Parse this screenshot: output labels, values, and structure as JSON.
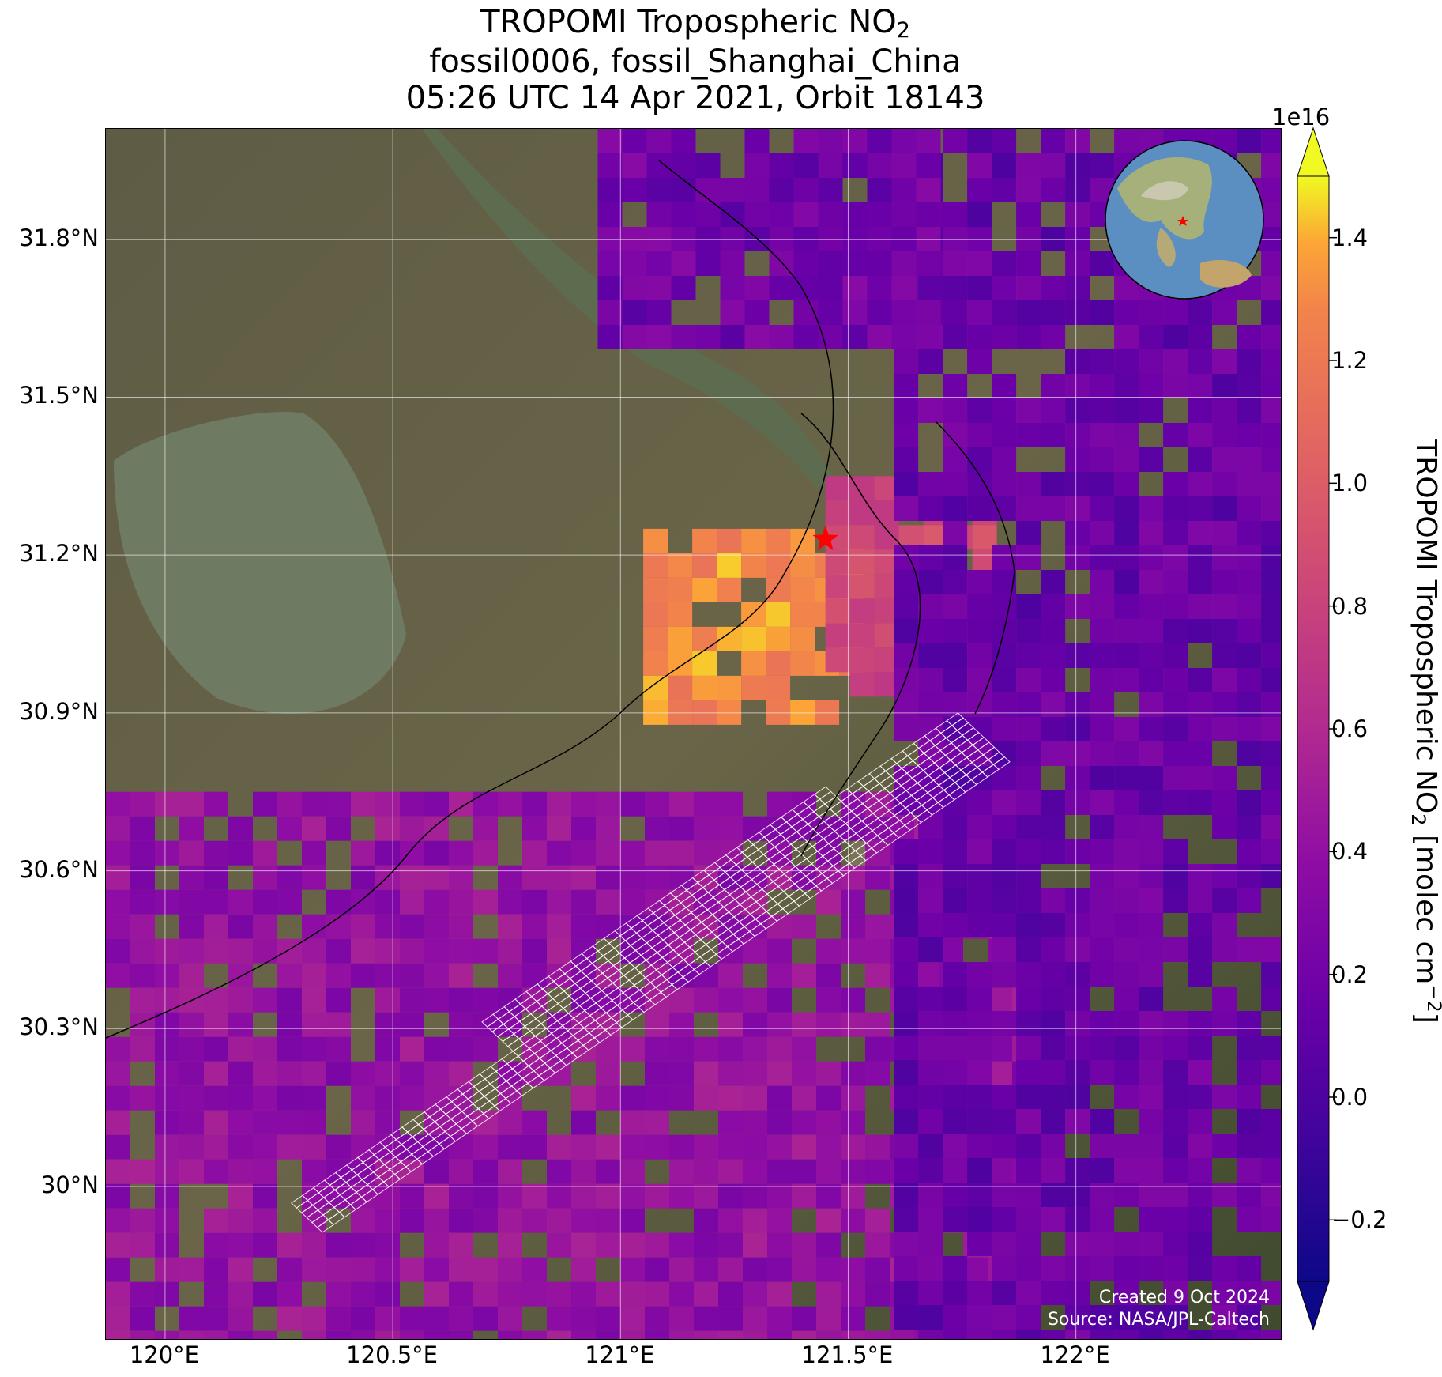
{
  "title": {
    "line1_main": "TROPOMI Tropospheric NO",
    "line1_sub": "2",
    "line2": "fossil0006, fossil_Shanghai_China",
    "line3": "05:26 UTC 14 Apr 2021, Orbit 18143"
  },
  "map": {
    "lon_labels": [
      "120°E",
      "120.5°E",
      "121°E",
      "121.5°E",
      "122°E"
    ],
    "lat_labels": [
      "31.8°N",
      "31.5°N",
      "31.2°N",
      "30.9°N",
      "30.6°N",
      "30.3°N",
      "30°N"
    ],
    "credit_line1": "Created 9 Oct 2024",
    "credit_line2": "Source: NASA/JPL-Caltech",
    "target_marker_color": "#ff0000",
    "target_marker_icon": "star-icon",
    "inset_globe_icon": "globe-icon"
  },
  "colorbar": {
    "exponent": "1e16",
    "ticks": [
      "1.4",
      "1.2",
      "1.0",
      "0.8",
      "0.6",
      "0.4",
      "0.2",
      "0.0",
      "−0.2"
    ],
    "label_main": "TROPOMI Tropospheric NO",
    "label_sub": "2",
    "label_units_pre": " [molec cm",
    "label_units_sup": "−2",
    "label_units_post": "]",
    "colormap": "plasma",
    "range": [
      -0.3,
      1.5
    ],
    "extend": "both"
  },
  "chart_data": {
    "type": "heatmap",
    "xlabel": "",
    "ylabel": "",
    "xlim": [
      119.87,
      122.45
    ],
    "ylim": [
      29.71,
      32.01
    ],
    "colorbar_range": [
      -0.3,
      1.5
    ],
    "colorbar_exponent": "1e16",
    "target": {
      "lon": 121.45,
      "lat": 31.23
    },
    "fields": [
      {
        "name": "high",
        "lon": [
          121.05,
          121.5
        ],
        "lat": [
          30.9,
          31.25
        ],
        "value": 1.3
      },
      {
        "name": "mid_ne",
        "lon": [
          121.45,
          121.8
        ],
        "lat": [
          30.95,
          31.35
        ],
        "value": 0.85
      },
      {
        "name": "south_band",
        "lon": [
          119.87,
          121.9
        ],
        "lat": [
          29.71,
          30.75
        ],
        "value": 0.4
      },
      {
        "name": "east_sea",
        "lon": [
          121.6,
          122.45
        ],
        "lat": [
          29.71,
          32.01
        ],
        "value": 0.15
      },
      {
        "name": "north_low",
        "lon": [
          120.95,
          121.7
        ],
        "lat": [
          31.6,
          32.01
        ],
        "value": 0.2
      }
    ]
  }
}
